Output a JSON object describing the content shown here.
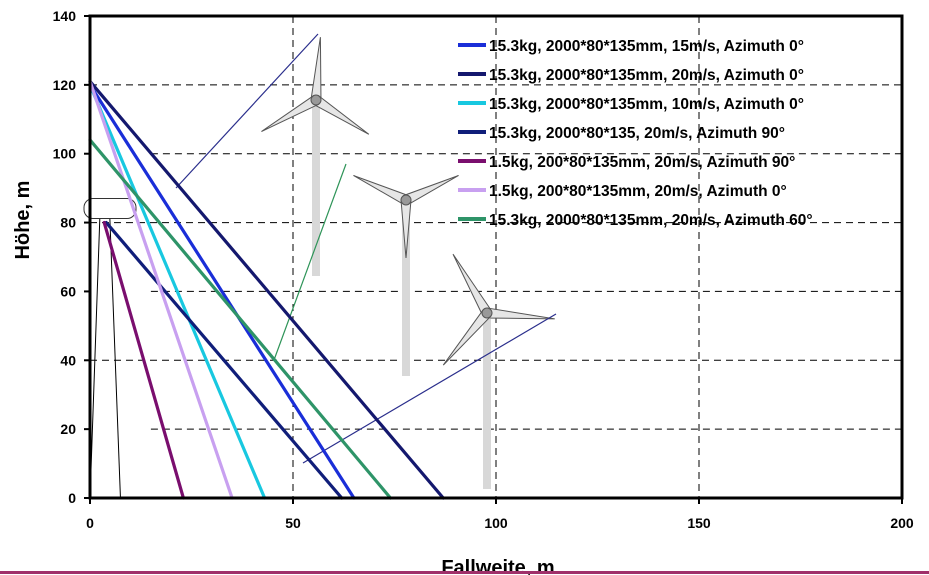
{
  "chart_data": {
    "type": "line",
    "title": "",
    "xlabel": "Fallweite, m",
    "ylabel": "Höhe, m",
    "xlim": [
      0,
      200
    ],
    "ylim": [
      0,
      140
    ],
    "xticks": [
      0,
      50,
      100,
      150,
      200
    ],
    "yticks": [
      0,
      20,
      40,
      60,
      80,
      100,
      120,
      140
    ],
    "grid": "dashed, at 20 m height steps and 50 m distance steps",
    "legend_position": "top-right",
    "series": [
      {
        "name": "15.3kg, 2000*80*135mm, 15m/s, Azimuth 0°",
        "color": "#1a2ed8",
        "x": [
          0,
          65
        ],
        "y": [
          120,
          0
        ]
      },
      {
        "name": "15.3kg, 2000*80*135mm, 20m/s, Azimuth 0°",
        "color": "#14186e",
        "x": [
          0,
          87
        ],
        "y": [
          121,
          0
        ]
      },
      {
        "name": "15.3kg, 2000*80*135mm, 10m/s, Azimuth 0°",
        "color": "#18c8e0",
        "x": [
          0,
          43
        ],
        "y": [
          120,
          0
        ]
      },
      {
        "name": "15.3kg, 2000*80*135, 20m/s, Azimuth 90°",
        "color": "#101e7a",
        "x": [
          4,
          62
        ],
        "y": [
          80,
          0
        ]
      },
      {
        "name": "1.5kg, 200*80*135mm, 20m/s, Azimuth 90°",
        "color": "#7a0e6e",
        "x": [
          3.5,
          23
        ],
        "y": [
          80,
          0
        ]
      },
      {
        "name": "1.5kg, 200*80*135mm, 20m/s, Azimuth 0°",
        "color": "#c8a0f0",
        "x": [
          0,
          35
        ],
        "y": [
          121,
          0
        ]
      },
      {
        "name": "15.3kg, 2000*80*135mm, 20m/s, Azimuth 60°",
        "color": "#2e9468",
        "x": [
          0,
          74
        ],
        "y": [
          104,
          0
        ]
      }
    ]
  }
}
